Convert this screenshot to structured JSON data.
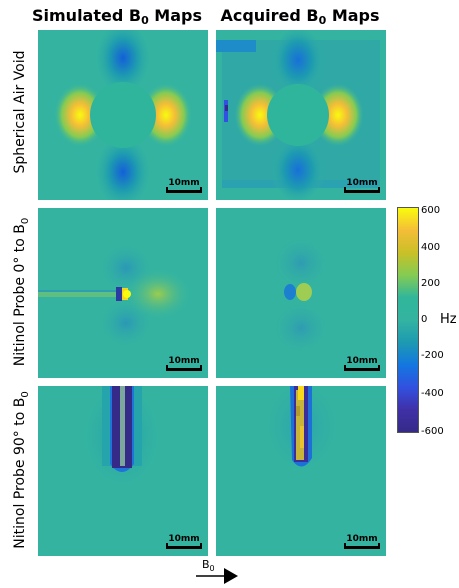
{
  "column_titles": [
    {
      "text": "Simulated B",
      "sub": "0",
      "suffix": " Maps"
    },
    {
      "text": "Acquired B",
      "sub": "0",
      "suffix": " Maps"
    }
  ],
  "row_labels": [
    {
      "text": "Spherical Air Void",
      "sub": ""
    },
    {
      "text": "Nitinol Probe 0° to B",
      "sub": "0"
    },
    {
      "text": "Nitinol Probe 90° to B",
      "sub": "0"
    }
  ],
  "scale_bar_label": "10mm",
  "colorbar": {
    "ticks": [
      "600",
      "400",
      "200",
      "0",
      "-200",
      "-400",
      "-600"
    ],
    "unit": "Hz",
    "colors": [
      "#f9fb0e",
      "#f4bd38",
      "#84cb53",
      "#34b4a0",
      "#1d9ab1",
      "#3151e0",
      "#352a87"
    ]
  },
  "field_direction": {
    "label": "B",
    "sub": "0"
  },
  "background_color": "#34b4a0"
}
